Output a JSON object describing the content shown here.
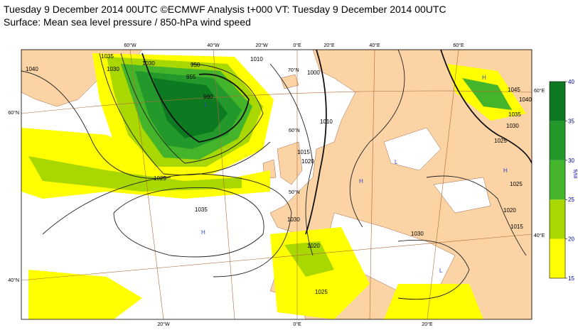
{
  "header": {
    "title": "Tuesday 9 December 2014 00UTC ©ECMWF Analysis t+000 VT: Tuesday 9 December 2014 00UTC",
    "subtitle": "Surface: Mean sea level pressure / 850-hPa wind speed"
  },
  "graticule": {
    "top": [
      "60°W",
      "40°W",
      "20°W",
      "0°E",
      "20°E",
      "40°E",
      "60°E"
    ],
    "bottom": [
      "20°W",
      "0°E",
      "20°E"
    ],
    "left": [
      "60°N",
      "40°N"
    ],
    "right": [
      "60°E",
      "40°E"
    ],
    "inner": [
      "70°N",
      "60°N",
      "50°N"
    ]
  },
  "isobar_labels": [
    "1040",
    "1035",
    "1030",
    "1025",
    "1035",
    "1030",
    "1020",
    "1015",
    "1010",
    "1000",
    "1010",
    "1020",
    "1025",
    "1015",
    "1020",
    "1025",
    "1030",
    "1035",
    "1040",
    "1045",
    "1025",
    "1030",
    "960",
    "955",
    "950",
    "1030"
  ],
  "pressure_centres": [
    "H",
    "L",
    "H",
    "H",
    "L",
    "H",
    "L"
  ],
  "colorbar": {
    "unit": "m/s",
    "ticks": [
      15,
      20,
      25,
      30,
      35,
      40
    ],
    "colors": [
      "#ffff00",
      "#a8d800",
      "#44b52a",
      "#22992a",
      "#0d7a22"
    ]
  }
}
